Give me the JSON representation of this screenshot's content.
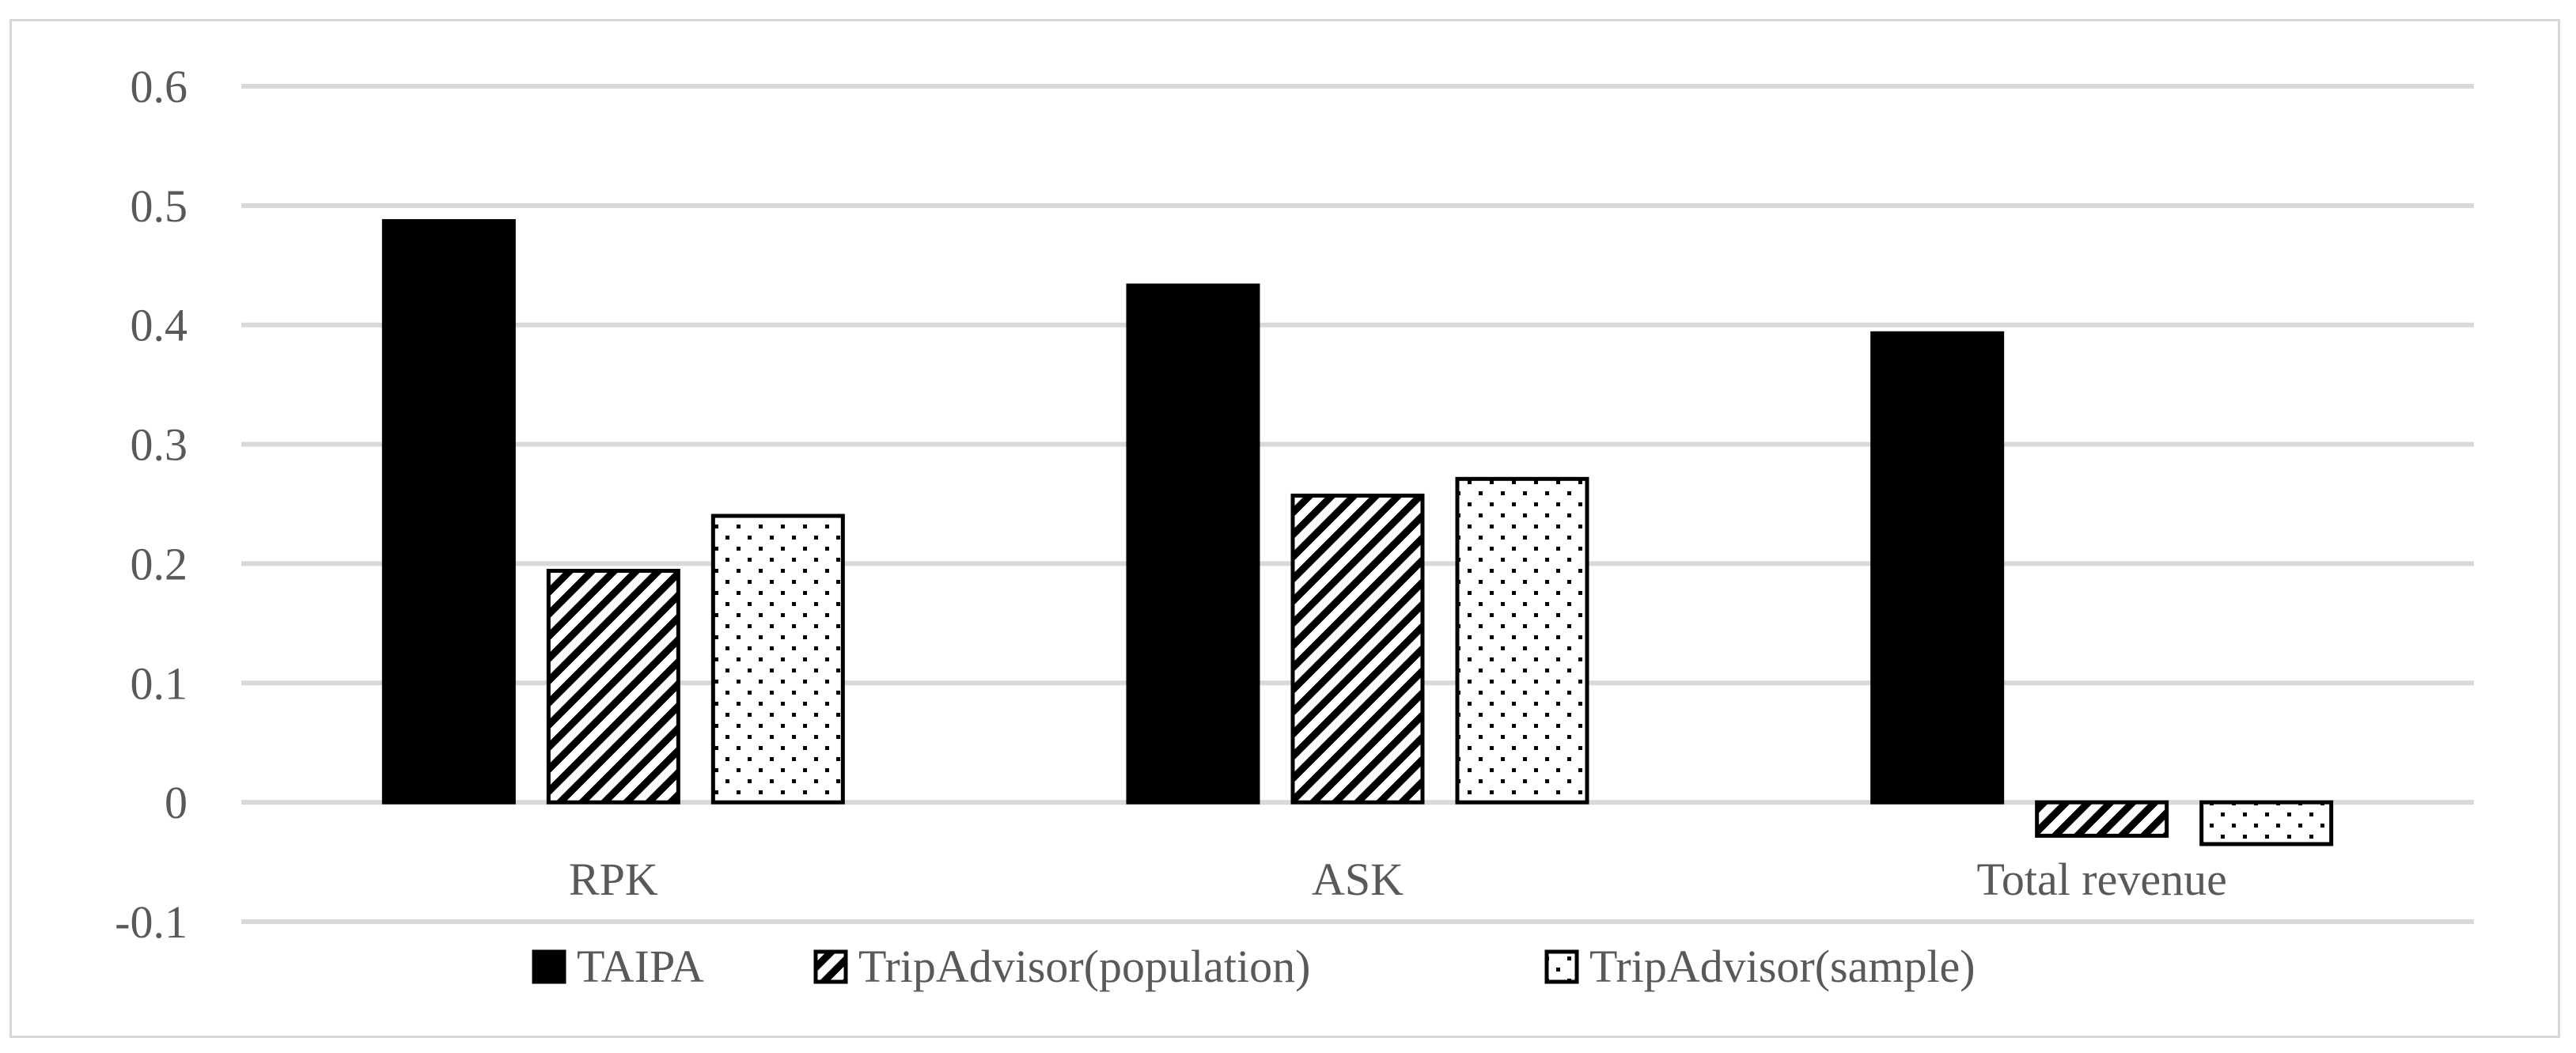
{
  "chart_data": {
    "type": "bar",
    "categories": [
      "RPK",
      "ASK",
      "Total revenue"
    ],
    "series": [
      {
        "name": "TAIPA",
        "values": [
          0.487,
          0.433,
          0.393
        ],
        "pattern": "solid"
      },
      {
        "name": "TripAdvisor(population)",
        "values": [
          0.194,
          0.257,
          -0.028
        ],
        "pattern": "diagonal-hatch"
      },
      {
        "name": "TripAdvisor(sample)",
        "values": [
          0.24,
          0.271,
          -0.035
        ],
        "pattern": "dots"
      }
    ],
    "ylim": [
      -0.1,
      0.6
    ],
    "yticks": [
      "0.6",
      "0.5",
      "0.4",
      "0.3",
      "0.2",
      "0.1",
      "0",
      "-0.1"
    ],
    "ytick_values": [
      0.6,
      0.5,
      0.4,
      0.3,
      0.2,
      0.1,
      0,
      -0.1
    ],
    "grid": true,
    "legend_position": "bottom",
    "colors": {
      "bar_fill": "#000000",
      "grid": "#d9d9d9",
      "text": "#595959",
      "frame": "#d9d9d9"
    }
  }
}
